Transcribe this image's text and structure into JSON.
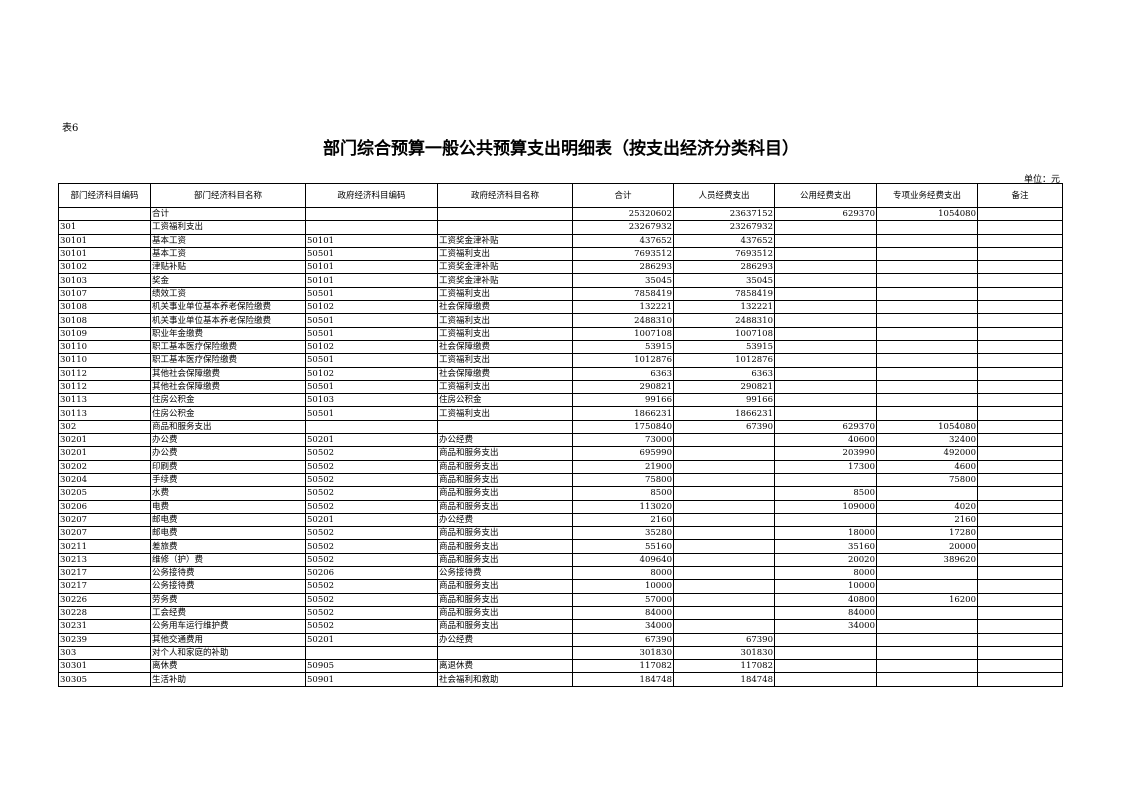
{
  "table_tag": "表6",
  "title": "部门综合预算一般公共预算支出明细表（按支出经济分类科目）",
  "unit": "单位：元",
  "columns": [
    "部门经济科目编码",
    "部门经济科目名称",
    "政府经济科目编码",
    "政府经济科目名称",
    "合计",
    "人员经费支出",
    "公用经费支出",
    "专项业务经费支出",
    "备注"
  ],
  "rows": [
    [
      "",
      "合计",
      "",
      "",
      "25320602",
      "23637152",
      "629370",
      "1054080",
      ""
    ],
    [
      "301",
      "工资福利支出",
      "",
      "",
      "23267932",
      "23267932",
      "",
      "",
      ""
    ],
    [
      "30101",
      "基本工资",
      "50101",
      "工资奖金津补贴",
      "437652",
      "437652",
      "",
      "",
      ""
    ],
    [
      "30101",
      "基本工资",
      "50501",
      "工资福利支出",
      "7693512",
      "7693512",
      "",
      "",
      ""
    ],
    [
      "30102",
      "津贴补贴",
      "50101",
      "工资奖金津补贴",
      "286293",
      "286293",
      "",
      "",
      ""
    ],
    [
      "30103",
      "奖金",
      "50101",
      "工资奖金津补贴",
      "35045",
      "35045",
      "",
      "",
      ""
    ],
    [
      "30107",
      "绩效工资",
      "50501",
      "工资福利支出",
      "7858419",
      "7858419",
      "",
      "",
      ""
    ],
    [
      "30108",
      "机关事业单位基本养老保险缴费",
      "50102",
      "社会保障缴费",
      "132221",
      "132221",
      "",
      "",
      ""
    ],
    [
      "30108",
      "机关事业单位基本养老保险缴费",
      "50501",
      "工资福利支出",
      "2488310",
      "2488310",
      "",
      "",
      ""
    ],
    [
      "30109",
      "职业年金缴费",
      "50501",
      "工资福利支出",
      "1007108",
      "1007108",
      "",
      "",
      ""
    ],
    [
      "30110",
      "职工基本医疗保险缴费",
      "50102",
      "社会保障缴费",
      "53915",
      "53915",
      "",
      "",
      ""
    ],
    [
      "30110",
      "职工基本医疗保险缴费",
      "50501",
      "工资福利支出",
      "1012876",
      "1012876",
      "",
      "",
      ""
    ],
    [
      "30112",
      "其他社会保障缴费",
      "50102",
      "社会保障缴费",
      "6363",
      "6363",
      "",
      "",
      ""
    ],
    [
      "30112",
      "其他社会保障缴费",
      "50501",
      "工资福利支出",
      "290821",
      "290821",
      "",
      "",
      ""
    ],
    [
      "30113",
      "住房公积金",
      "50103",
      "住房公积金",
      "99166",
      "99166",
      "",
      "",
      ""
    ],
    [
      "30113",
      "住房公积金",
      "50501",
      "工资福利支出",
      "1866231",
      "1866231",
      "",
      "",
      ""
    ],
    [
      "302",
      "商品和服务支出",
      "",
      "",
      "1750840",
      "67390",
      "629370",
      "1054080",
      ""
    ],
    [
      "30201",
      "办公费",
      "50201",
      "办公经费",
      "73000",
      "",
      "40600",
      "32400",
      ""
    ],
    [
      "30201",
      "办公费",
      "50502",
      "商品和服务支出",
      "695990",
      "",
      "203990",
      "492000",
      ""
    ],
    [
      "30202",
      "印刷费",
      "50502",
      "商品和服务支出",
      "21900",
      "",
      "17300",
      "4600",
      ""
    ],
    [
      "30204",
      "手续费",
      "50502",
      "商品和服务支出",
      "75800",
      "",
      "",
      "75800",
      ""
    ],
    [
      "30205",
      "水费",
      "50502",
      "商品和服务支出",
      "8500",
      "",
      "8500",
      "",
      ""
    ],
    [
      "30206",
      "电费",
      "50502",
      "商品和服务支出",
      "113020",
      "",
      "109000",
      "4020",
      ""
    ],
    [
      "30207",
      "邮电费",
      "50201",
      "办公经费",
      "2160",
      "",
      "",
      "2160",
      ""
    ],
    [
      "30207",
      "邮电费",
      "50502",
      "商品和服务支出",
      "35280",
      "",
      "18000",
      "17280",
      ""
    ],
    [
      "30211",
      "差旅费",
      "50502",
      "商品和服务支出",
      "55160",
      "",
      "35160",
      "20000",
      ""
    ],
    [
      "30213",
      "维修（护）费",
      "50502",
      "商品和服务支出",
      "409640",
      "",
      "20020",
      "389620",
      ""
    ],
    [
      "30217",
      "公务接待费",
      "50206",
      "公务接待费",
      "8000",
      "",
      "8000",
      "",
      ""
    ],
    [
      "30217",
      "公务接待费",
      "50502",
      "商品和服务支出",
      "10000",
      "",
      "10000",
      "",
      ""
    ],
    [
      "30226",
      "劳务费",
      "50502",
      "商品和服务支出",
      "57000",
      "",
      "40800",
      "16200",
      ""
    ],
    [
      "30228",
      "工会经费",
      "50502",
      "商品和服务支出",
      "84000",
      "",
      "84000",
      "",
      ""
    ],
    [
      "30231",
      "公务用车运行维护费",
      "50502",
      "商品和服务支出",
      "34000",
      "",
      "34000",
      "",
      ""
    ],
    [
      "30239",
      "其他交通费用",
      "50201",
      "办公经费",
      "67390",
      "67390",
      "",
      "",
      ""
    ],
    [
      "303",
      "对个人和家庭的补助",
      "",
      "",
      "301830",
      "301830",
      "",
      "",
      ""
    ],
    [
      "30301",
      "离休费",
      "50905",
      "离退休费",
      "117082",
      "117082",
      "",
      "",
      ""
    ],
    [
      "30305",
      "生活补助",
      "50901",
      "社会福利和救助",
      "184748",
      "184748",
      "",
      "",
      ""
    ]
  ]
}
